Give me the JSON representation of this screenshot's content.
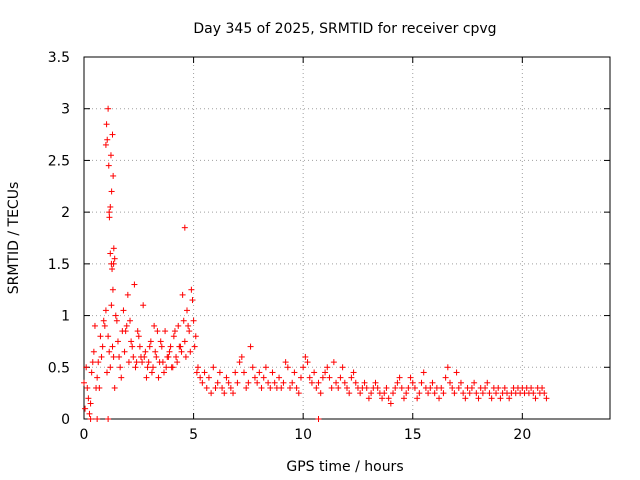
{
  "chart_data": {
    "type": "scatter",
    "title": "Day 345 of 2025, SRMTID for receiver cpvg",
    "xlabel": "GPS time / hours",
    "ylabel": "SRMTID / TECUs",
    "xlim": [
      0,
      24
    ],
    "ylim": [
      0,
      3.5
    ],
    "xticks": [
      0,
      5,
      10,
      15,
      20
    ],
    "yticks": [
      0,
      0.5,
      1,
      1.5,
      2,
      2.5,
      3,
      3.5
    ],
    "ytick_labels": [
      "0",
      "0.5",
      "1",
      "1.5",
      "2",
      "2.5",
      "3",
      "3.5"
    ],
    "grid": true,
    "marker": "+",
    "color": "#ff0000",
    "series": [
      {
        "name": "SRMTID",
        "x": [
          0.0,
          0.1,
          0.2,
          0.3,
          0.4,
          0.5,
          0.6,
          0.7,
          0.8,
          0.9,
          1.0,
          1.1,
          1.2,
          1.3,
          1.4,
          1.5,
          1.6,
          1.7,
          1.8,
          1.9,
          2.0,
          2.1,
          2.2,
          2.3,
          2.4,
          2.5,
          2.6,
          2.7,
          2.8,
          2.9,
          3.0,
          3.1,
          3.2,
          3.3,
          3.4,
          3.5,
          3.6,
          3.7,
          3.8,
          3.9,
          4.0,
          4.1,
          4.2,
          4.3,
          4.4,
          4.5,
          4.6,
          4.7,
          4.8,
          4.9,
          5.0,
          5.1,
          5.2,
          5.3,
          5.4,
          5.5,
          5.6,
          5.7,
          5.8,
          5.9,
          6.0,
          6.1,
          6.2,
          6.3,
          6.4,
          6.5,
          6.6,
          6.7,
          6.8,
          6.9,
          7.0,
          7.1,
          7.2,
          7.3,
          7.4,
          7.5,
          7.6,
          7.7,
          7.8,
          7.9,
          8.0,
          8.1,
          8.2,
          8.3,
          8.4,
          8.5,
          8.6,
          8.7,
          8.8,
          8.9,
          9.0,
          9.1,
          9.2,
          9.3,
          9.4,
          9.5,
          9.6,
          9.7,
          9.8,
          9.9,
          10.0,
          10.1,
          10.2,
          10.3,
          10.4,
          10.5,
          10.6,
          10.7,
          10.8,
          10.9,
          11.0,
          11.1,
          11.2,
          11.3,
          11.4,
          11.5,
          11.6,
          11.7,
          11.8,
          11.9,
          12.0,
          12.1,
          12.2,
          12.3,
          12.4,
          12.5,
          12.6,
          12.7,
          12.8,
          12.9,
          13.0,
          13.1,
          13.2,
          13.3,
          13.4,
          13.5,
          13.6,
          13.7,
          13.8,
          13.9,
          14.0,
          14.1,
          14.2,
          14.3,
          14.4,
          14.5,
          14.6,
          14.7,
          14.8,
          14.9,
          15.0,
          15.1,
          15.2,
          15.3,
          15.4,
          15.5,
          15.6,
          15.7,
          15.8,
          15.9,
          16.0,
          16.1,
          16.2,
          16.3,
          16.4,
          16.5,
          16.6,
          16.7,
          16.8,
          16.9,
          17.0,
          17.1,
          17.2,
          17.3,
          17.4,
          17.5,
          17.6,
          17.7,
          17.8,
          17.9,
          18.0,
          18.1,
          18.2,
          18.3,
          18.4,
          18.5,
          18.6,
          18.7,
          18.8,
          18.9,
          19.0,
          19.1,
          19.2,
          19.3,
          19.4,
          19.5,
          19.6,
          19.7,
          19.8,
          19.9,
          20.0,
          20.1,
          20.2,
          20.3,
          20.4,
          20.5,
          20.6,
          20.7,
          20.8,
          20.9,
          21.0,
          21.1,
          0.05,
          0.15,
          0.25,
          0.35,
          0.45,
          0.55,
          0.65,
          0.75,
          0.85,
          0.95,
          1.05,
          1.15,
          1.25,
          1.35,
          1.45,
          1.55,
          1.65,
          1.75,
          1.85,
          1.95,
          2.05,
          2.15,
          2.25,
          2.35,
          2.45,
          2.55,
          2.65,
          2.75,
          2.85,
          2.95,
          3.05,
          3.15,
          3.25,
          3.35,
          3.45,
          3.55,
          3.65,
          3.75,
          3.85,
          3.95,
          4.05,
          4.15,
          4.25,
          4.35,
          4.45,
          4.55,
          4.65,
          4.75,
          4.85,
          4.95,
          5.05,
          5.15,
          1.0,
          1.03,
          1.06,
          1.1,
          1.13,
          1.16,
          1.2,
          1.23,
          1.26,
          1.3,
          1.33,
          1.36,
          1.4,
          1.2,
          1.25,
          1.28,
          1.32,
          1.35,
          4.6,
          1.15,
          0.3,
          0.6,
          1.1,
          10.7
        ],
        "y": [
          0.35,
          0.5,
          0.2,
          0.15,
          0.55,
          0.9,
          0.4,
          0.3,
          0.6,
          0.95,
          1.05,
          0.8,
          0.5,
          0.7,
          0.3,
          0.95,
          0.6,
          0.4,
          1.05,
          0.85,
          1.2,
          0.95,
          0.7,
          1.3,
          0.55,
          0.8,
          0.6,
          1.1,
          0.65,
          0.5,
          0.7,
          0.45,
          0.9,
          0.6,
          0.4,
          0.75,
          0.55,
          0.85,
          0.6,
          0.65,
          0.5,
          0.8,
          0.6,
          0.9,
          0.7,
          1.2,
          0.75,
          1.05,
          0.85,
          1.25,
          0.95,
          0.8,
          0.5,
          0.4,
          0.35,
          0.45,
          0.3,
          0.4,
          0.25,
          0.5,
          0.3,
          0.35,
          0.45,
          0.3,
          0.25,
          0.4,
          0.35,
          0.3,
          0.25,
          0.45,
          0.35,
          0.55,
          0.6,
          0.45,
          0.3,
          0.35,
          0.7,
          0.5,
          0.4,
          0.35,
          0.45,
          0.3,
          0.4,
          0.5,
          0.35,
          0.3,
          0.45,
          0.35,
          0.3,
          0.4,
          0.3,
          0.35,
          0.55,
          0.5,
          0.3,
          0.35,
          0.45,
          0.3,
          0.25,
          0.4,
          0.5,
          0.6,
          0.55,
          0.4,
          0.35,
          0.45,
          0.3,
          0.35,
          0.25,
          0.4,
          0.45,
          0.5,
          0.4,
          0.3,
          0.55,
          0.35,
          0.3,
          0.4,
          0.5,
          0.35,
          0.3,
          0.25,
          0.4,
          0.45,
          0.35,
          0.3,
          0.25,
          0.3,
          0.35,
          0.3,
          0.2,
          0.25,
          0.3,
          0.35,
          0.3,
          0.25,
          0.2,
          0.25,
          0.3,
          0.2,
          0.15,
          0.25,
          0.3,
          0.35,
          0.4,
          0.3,
          0.2,
          0.25,
          0.3,
          0.4,
          0.35,
          0.3,
          0.2,
          0.25,
          0.35,
          0.45,
          0.3,
          0.25,
          0.3,
          0.35,
          0.25,
          0.3,
          0.2,
          0.3,
          0.25,
          0.4,
          0.5,
          0.35,
          0.3,
          0.25,
          0.45,
          0.3,
          0.35,
          0.25,
          0.2,
          0.3,
          0.25,
          0.3,
          0.35,
          0.25,
          0.2,
          0.3,
          0.25,
          0.3,
          0.35,
          0.25,
          0.2,
          0.3,
          0.25,
          0.3,
          0.2,
          0.25,
          0.3,
          0.25,
          0.2,
          0.25,
          0.3,
          0.25,
          0.3,
          0.25,
          0.3,
          0.25,
          0.3,
          0.25,
          0.3,
          0.25,
          0.2,
          0.3,
          0.25,
          0.3,
          0.25,
          0.2,
          0.1,
          0.3,
          0.05,
          0.45,
          0.65,
          0.3,
          0.55,
          0.8,
          0.7,
          0.9,
          0.45,
          0.65,
          1.1,
          0.6,
          1.0,
          0.75,
          0.5,
          0.85,
          0.65,
          0.9,
          0.55,
          0.75,
          0.6,
          0.5,
          0.85,
          0.7,
          0.55,
          0.6,
          0.4,
          0.55,
          0.75,
          0.5,
          0.65,
          0.85,
          0.55,
          0.7,
          0.45,
          0.5,
          0.6,
          0.7,
          0.5,
          0.85,
          0.55,
          0.7,
          0.65,
          0.95,
          0.6,
          0.9,
          0.65,
          1.15,
          0.7,
          0.45,
          2.65,
          2.85,
          2.7,
          3.0,
          2.45,
          1.95,
          2.05,
          2.55,
          2.2,
          2.75,
          2.35,
          1.65,
          1.55,
          1.6,
          1.5,
          1.45,
          1.25,
          1.5,
          1.85,
          2.0,
          0.0,
          0.0,
          0.0,
          0.0
        ]
      }
    ]
  }
}
